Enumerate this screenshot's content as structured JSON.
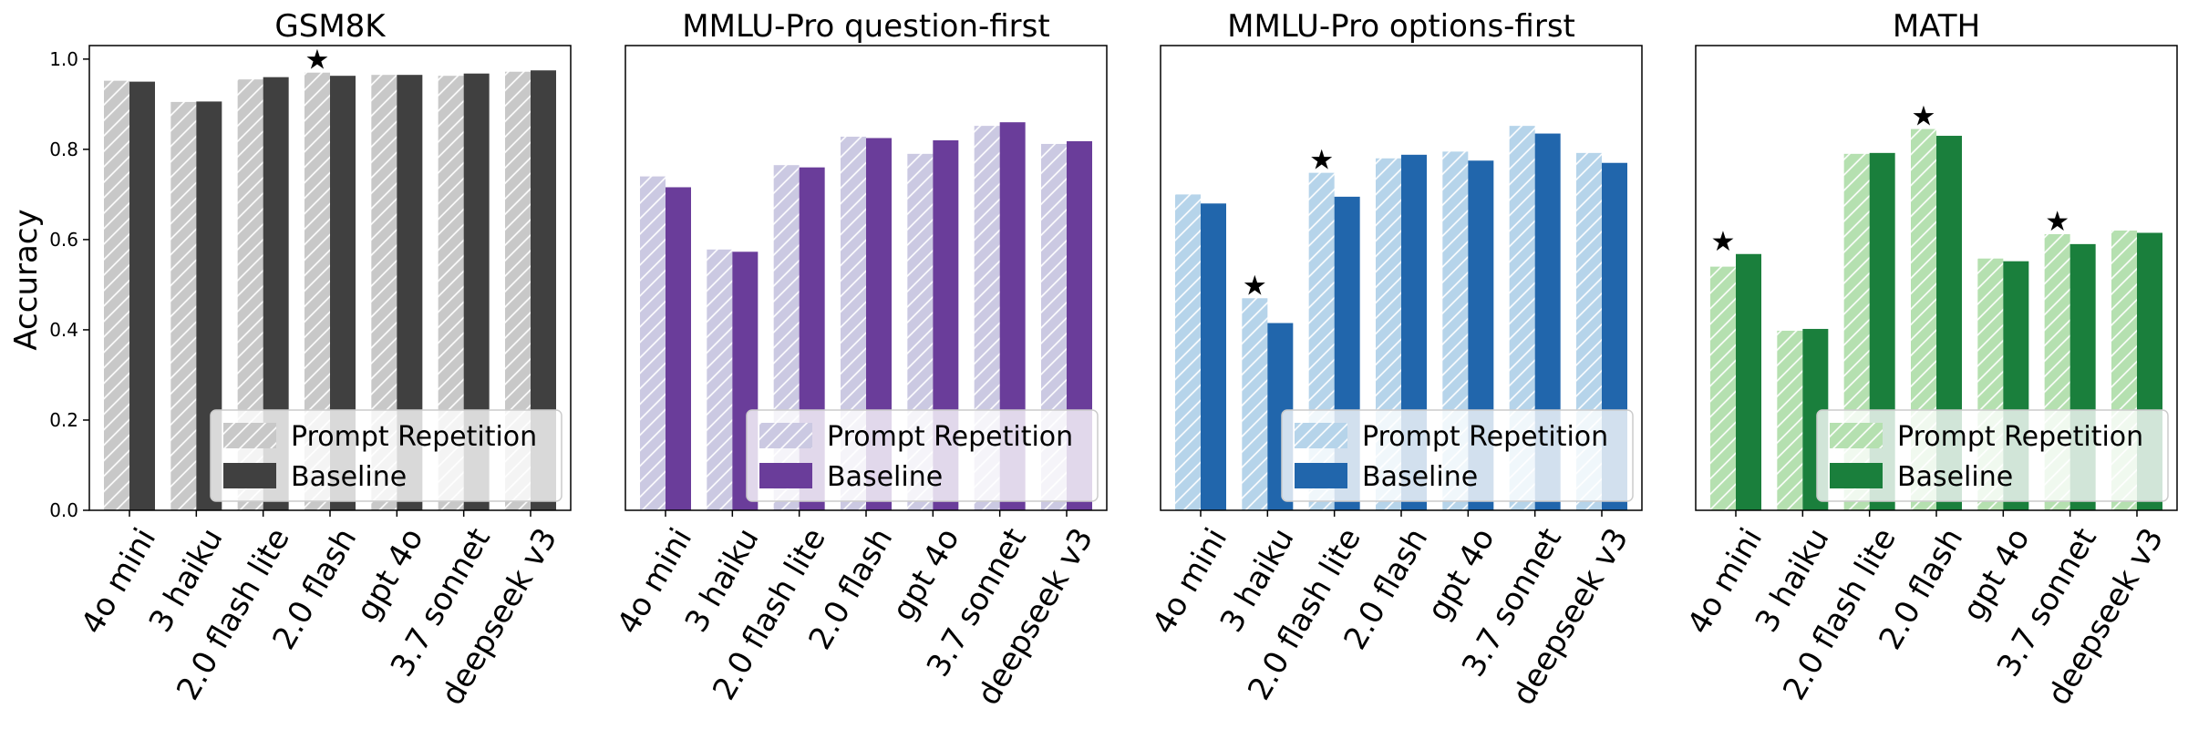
{
  "figure": {
    "ylabel": "Accuracy",
    "yticks": [
      "0.0",
      "0.2",
      "0.4",
      "0.6",
      "0.8",
      "1.0"
    ]
  },
  "chart_data": [
    {
      "type": "bar",
      "title": "GSM8K",
      "categories": [
        "4o mini",
        "3 haiku",
        "2.0 flash lite",
        "2.0 flash",
        "gpt 4o",
        "3.7 sonnet",
        "deepseek v3"
      ],
      "series": [
        {
          "name": "Prompt Repetition",
          "values": [
            0.952,
            0.905,
            0.955,
            0.97,
            0.965,
            0.963,
            0.972
          ],
          "color": "#c8c8c8",
          "hatched": true
        },
        {
          "name": "Baseline",
          "values": [
            0.95,
            0.906,
            0.96,
            0.963,
            0.965,
            0.968,
            0.975
          ],
          "color": "#404040",
          "hatched": false
        }
      ],
      "stars": [
        3
      ],
      "star_symbol": "★",
      "ylim": [
        0,
        1.03
      ],
      "legend": "lower-right",
      "show_yticks": true
    },
    {
      "type": "bar",
      "title": "MMLU-Pro question-first",
      "categories": [
        "4o mini",
        "3 haiku",
        "2.0 flash lite",
        "2.0 flash",
        "gpt 4o",
        "3.7 sonnet",
        "deepseek v3"
      ],
      "series": [
        {
          "name": "Prompt Repetition",
          "values": [
            0.74,
            0.578,
            0.765,
            0.828,
            0.79,
            0.852,
            0.812
          ],
          "color": "#cbc9e2",
          "hatched": true
        },
        {
          "name": "Baseline",
          "values": [
            0.716,
            0.573,
            0.76,
            0.825,
            0.82,
            0.86,
            0.818
          ],
          "color": "#6a3d9a",
          "hatched": false
        }
      ],
      "stars": [],
      "star_symbol": "★",
      "ylim": [
        0,
        1.03
      ],
      "legend": "lower-right",
      "show_yticks": false
    },
    {
      "type": "bar",
      "title": "MMLU-Pro options-first",
      "categories": [
        "4o mini",
        "3 haiku",
        "2.0 flash lite",
        "2.0 flash",
        "gpt 4o",
        "3.7 sonnet",
        "deepseek v3"
      ],
      "series": [
        {
          "name": "Prompt Repetition",
          "values": [
            0.7,
            0.47,
            0.748,
            0.78,
            0.795,
            0.852,
            0.792
          ],
          "color": "#b6d4ea",
          "hatched": true
        },
        {
          "name": "Baseline",
          "values": [
            0.68,
            0.415,
            0.695,
            0.788,
            0.775,
            0.835,
            0.77
          ],
          "color": "#2166ac",
          "hatched": false
        }
      ],
      "stars": [
        1,
        2
      ],
      "star_symbol": "★",
      "ylim": [
        0,
        1.03
      ],
      "legend": "lower-right",
      "show_yticks": false
    },
    {
      "type": "bar",
      "title": "MATH",
      "categories": [
        "4o mini",
        "3 haiku",
        "2.0 flash lite",
        "2.0 flash",
        "gpt 4o",
        "3.7 sonnet",
        "deepseek v3"
      ],
      "series": [
        {
          "name": "Prompt Repetition",
          "values": [
            0.54,
            0.398,
            0.79,
            0.845,
            0.558,
            0.612,
            0.62
          ],
          "color": "#b5e0b0",
          "hatched": true
        },
        {
          "name": "Baseline",
          "values": [
            0.568,
            0.402,
            0.792,
            0.83,
            0.552,
            0.59,
            0.615
          ],
          "color": "#1a7f3c",
          "hatched": false
        }
      ],
      "stars": [
        0,
        3,
        5
      ],
      "star_symbol": "★",
      "ylim": [
        0,
        1.03
      ],
      "legend": "lower-right",
      "show_yticks": false
    }
  ]
}
